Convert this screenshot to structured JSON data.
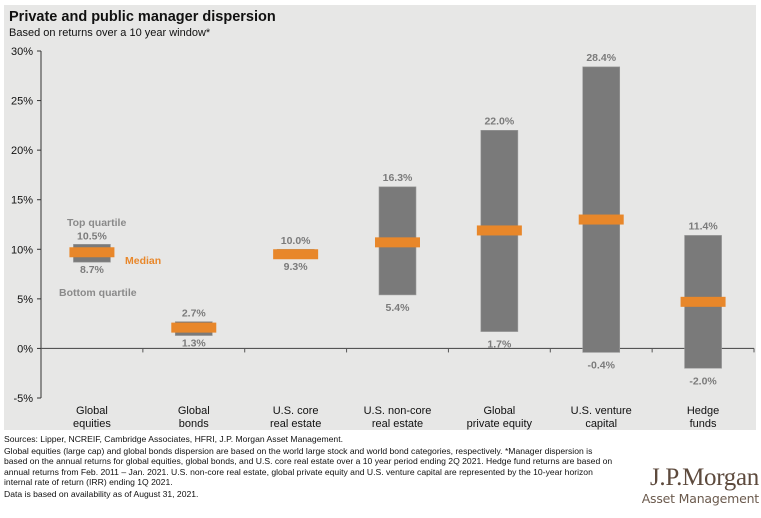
{
  "header": {
    "title": "Private and public manager dispersion",
    "subtitle": "Based on returns over a 10 year window*"
  },
  "chart_data": {
    "type": "bar",
    "subtype": "floating-range-with-median",
    "title": "Private and public manager dispersion",
    "subtitle": "Based on returns over a 10 year window*",
    "xlabel": "",
    "ylabel": "",
    "ylim": [
      -5,
      30
    ],
    "yticks": [
      30,
      25,
      20,
      15,
      10,
      5,
      0,
      -5
    ],
    "ytick_labels": [
      "30%",
      "25%",
      "20%",
      "15%",
      "10%",
      "5%",
      "0%",
      "-5%"
    ],
    "grid": false,
    "categories": [
      [
        "Global",
        "equities"
      ],
      [
        "Global",
        "bonds"
      ],
      [
        "U.S. core",
        "real estate"
      ],
      [
        "U.S. non-core",
        "real estate"
      ],
      [
        "Global",
        "private equity"
      ],
      [
        "U.S. venture",
        "capital"
      ],
      [
        "Hedge",
        "funds"
      ]
    ],
    "series": [
      {
        "name": "Top quartile",
        "values": [
          10.5,
          2.7,
          10.0,
          16.3,
          22.0,
          28.4,
          11.4
        ],
        "labels": [
          "10.5%",
          "2.7%",
          "10.0%",
          "16.3%",
          "22.0%",
          "28.4%",
          "11.4%"
        ]
      },
      {
        "name": "Bottom quartile",
        "values": [
          8.7,
          1.3,
          9.3,
          5.4,
          1.7,
          -0.4,
          -2.0
        ],
        "labels": [
          "8.7%",
          "1.3%",
          "9.3%",
          "5.4%",
          "1.7%",
          "-0.4%",
          "-2.0%"
        ]
      },
      {
        "name": "Median",
        "values": [
          9.7,
          2.1,
          9.5,
          10.7,
          11.9,
          13.0,
          4.7
        ]
      }
    ],
    "annotations": {
      "top": "Top quartile",
      "median": "Median",
      "bottom": "Bottom quartile"
    },
    "colors": {
      "range": "#7a7a7a",
      "median": "#e8872a",
      "axis": "#333333"
    }
  },
  "footnotes": {
    "sources": "Sources: Lipper, NCREIF, Cambridge Associates, HFRI, J.P. Morgan Asset Management.",
    "methodology": "Global equities (large cap) and global bonds dispersion are based on the world large stock and world bond categories, respectively. *Manager dispersion is based on the annual returns for global equities, global bonds, and U.S. core real estate over a 10 year period ending 2Q 2021. Hedge fund returns are based on annual returns from Feb. 2011 – Jan. 2021. U.S. non-core real estate, global private equity and U.S. venture capital are represented by the 10-year horizon internal rate of return (IRR) ending 1Q 2021.",
    "availability": "Data is based on availability as of August 31, 2021."
  },
  "logo": {
    "main": "J.P.Morgan",
    "sub": "Asset Management"
  }
}
